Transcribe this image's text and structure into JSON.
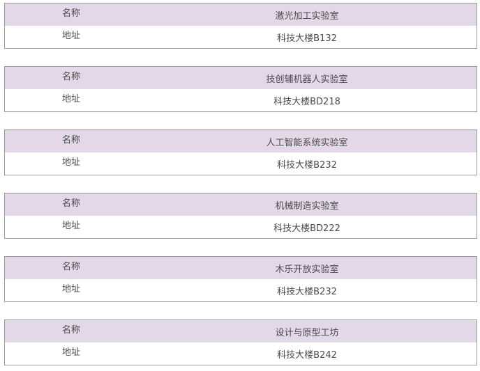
{
  "labels": {
    "name": "名称",
    "address": "地址"
  },
  "header_color": "#e2d8e8",
  "labs": [
    {
      "name": "激光加工实验室",
      "address": "科技大楼B132"
    },
    {
      "name": "技创辅机器人实验室",
      "address": "科技大楼BD218"
    },
    {
      "name": "人工智能系统实验室",
      "address": "科技大楼B232"
    },
    {
      "name": "机械制造实验室",
      "address": "科技大楼BD222"
    },
    {
      "name": "木乐开放实验室",
      "address": "科技大楼B232"
    },
    {
      "name": "设计与原型工坊",
      "address": "科技大楼B242"
    }
  ]
}
